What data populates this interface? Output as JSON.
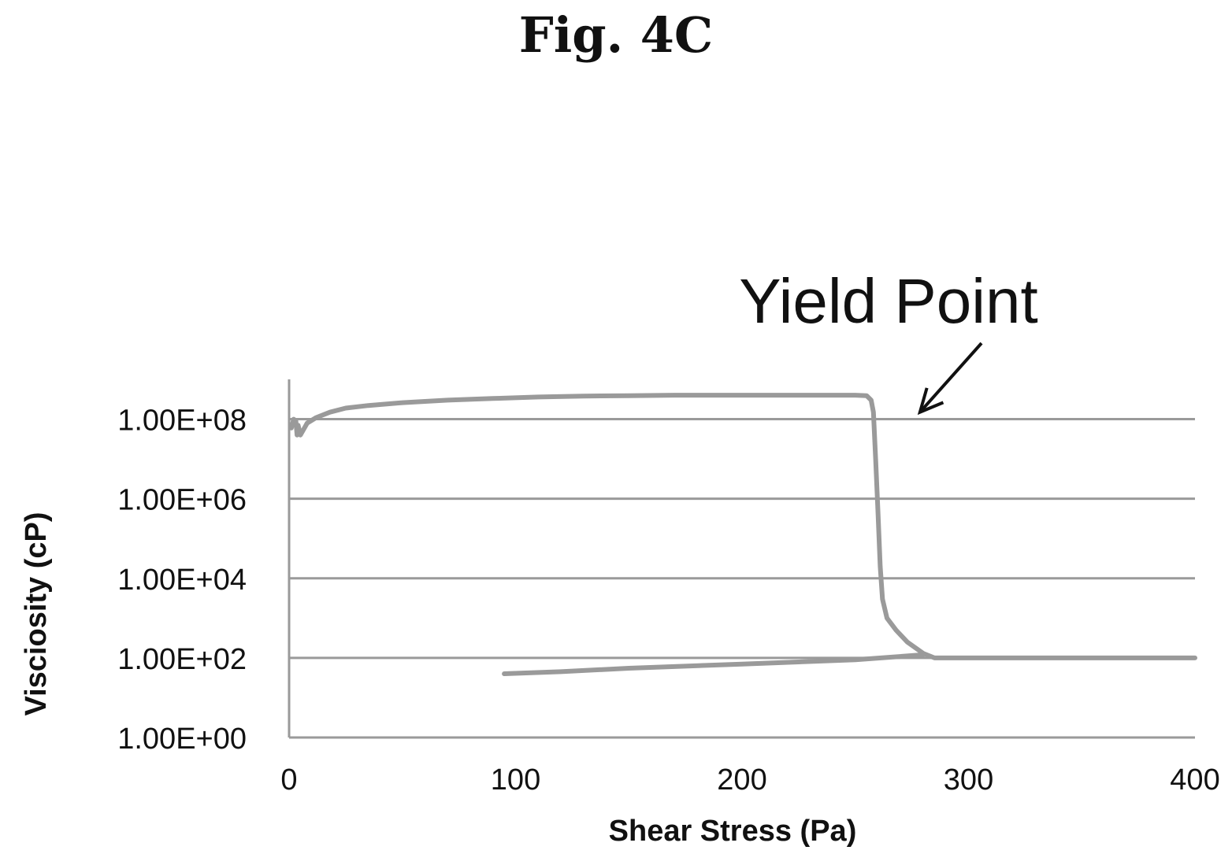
{
  "figure_label": "Fig. 4C",
  "chart_data": {
    "type": "line",
    "title": "",
    "xlabel": "Shear Stress (Pa)",
    "ylabel": "Visciosity (cP)",
    "xlim": [
      0,
      400
    ],
    "ylim": [
      1,
      1000000000
    ],
    "y_scale": "log",
    "x_ticks": [
      0,
      100,
      200,
      300,
      400
    ],
    "x_tick_labels": [
      "0",
      "100",
      "200",
      "300",
      "400"
    ],
    "y_ticks": [
      1,
      100,
      10000,
      1000000,
      100000000
    ],
    "y_tick_labels": [
      "1.00E+00",
      "1.00E+02",
      "1.00E+04",
      "1.00E+06",
      "1.00E+08"
    ],
    "grid": "horizontal",
    "legend": "none",
    "line_color": "#9a9a9a",
    "annotation": {
      "text": "Yield Point",
      "points_to": [
        273,
        150000000
      ]
    },
    "series": [
      {
        "x": [
          1,
          2,
          3,
          3.5,
          4,
          5,
          8,
          12,
          18,
          25,
          35,
          50,
          70,
          90,
          110,
          130,
          150,
          170,
          190,
          210,
          230,
          245,
          250,
          255,
          257,
          258,
          259,
          260,
          261,
          262,
          264,
          268,
          273,
          280,
          285,
          290,
          300,
          400
        ],
        "y": [
          60000000,
          100000000,
          90000000,
          40000000,
          70000000,
          40000000,
          80000000,
          110000000,
          150000000,
          190000000,
          220000000,
          260000000,
          300000000,
          330000000,
          360000000,
          380000000,
          390000000,
          400000000,
          400000000,
          400000000,
          400000000,
          400000000,
          400000000,
          390000000,
          300000000,
          150000000,
          10000000,
          500000,
          20000,
          3000,
          1000,
          500,
          250,
          130,
          100,
          100,
          100,
          100
        ]
      },
      {
        "x": [
          95,
          120,
          150,
          200,
          250,
          280
        ],
        "y": [
          40,
          45,
          55,
          70,
          90,
          120
        ]
      }
    ]
  }
}
